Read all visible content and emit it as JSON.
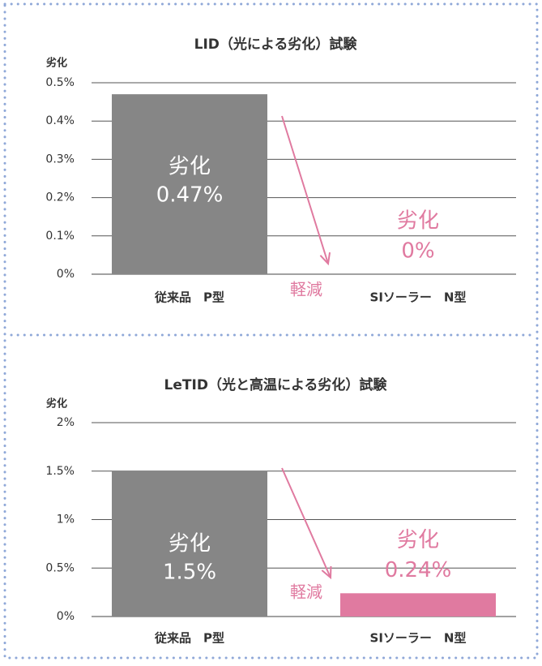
{
  "chart_data": [
    {
      "type": "bar",
      "title": "LID（光による劣化）試験",
      "y_label": "劣化",
      "categories": [
        "従来品　P型",
        "SIソーラー　N型"
      ],
      "values": [
        0.47,
        0
      ],
      "value_labels": [
        "0.47%",
        "0%"
      ],
      "value_label_title": "劣化",
      "colors": [
        "#868686",
        "#e07aa0"
      ],
      "label_colors": [
        "#ffffff",
        "#e07aa0"
      ],
      "ylim": [
        0,
        0.5
      ],
      "yticks": [
        {
          "value": 0,
          "label": "0%"
        },
        {
          "value": 0.1,
          "label": "0.1%"
        },
        {
          "value": 0.2,
          "label": "0.2%"
        },
        {
          "value": 0.3,
          "label": "0.3%"
        },
        {
          "value": 0.4,
          "label": "0.4%"
        },
        {
          "value": 0.5,
          "label": "0.5%"
        }
      ],
      "grid": true,
      "annotation": "軽減"
    },
    {
      "type": "bar",
      "title": "LeTID（光と高温による劣化）試験",
      "y_label": "劣化",
      "categories": [
        "従来品　P型",
        "SIソーラー　N型"
      ],
      "values": [
        1.5,
        0.24
      ],
      "value_labels": [
        "1.5%",
        "0.24%"
      ],
      "value_label_title": "劣化",
      "colors": [
        "#868686",
        "#e07aa0"
      ],
      "label_colors": [
        "#ffffff",
        "#e07aa0"
      ],
      "ylim": [
        0,
        2
      ],
      "yticks": [
        {
          "value": 0,
          "label": "0%"
        },
        {
          "value": 0.5,
          "label": "0.5%"
        },
        {
          "value": 1,
          "label": "1%"
        },
        {
          "value": 1.5,
          "label": "1.5%"
        },
        {
          "value": 2,
          "label": "2%"
        }
      ],
      "grid": true,
      "annotation": "軽減"
    }
  ]
}
